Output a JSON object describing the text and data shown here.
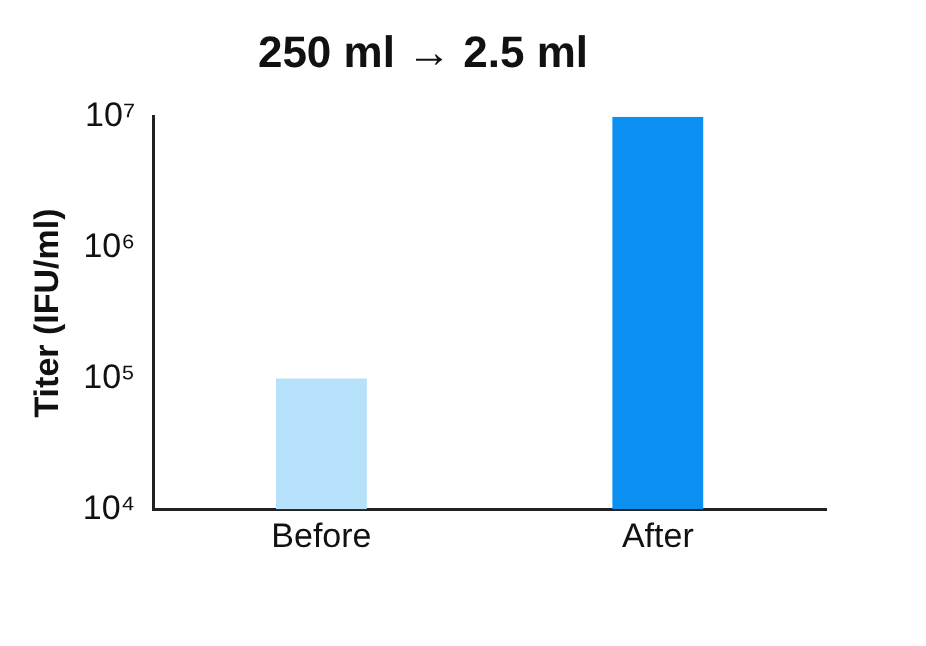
{
  "chart_data": {
    "type": "bar",
    "title": "250 ml → 2.5 ml",
    "ylabel": "Titer (IFU/ml)",
    "categories": [
      "Before",
      "After"
    ],
    "values": [
      100000,
      10000000
    ],
    "colors": [
      "#b6e1fb",
      "#0b8ff0"
    ],
    "log": true,
    "ylim": [
      10000,
      10000000
    ],
    "yticks": [
      {
        "value": 10000,
        "label": "10⁴"
      },
      {
        "value": 100000,
        "label": "10⁵"
      },
      {
        "value": 1000000,
        "label": "10⁶"
      },
      {
        "value": 10000000,
        "label": "10⁷"
      }
    ],
    "grid": false,
    "legend": false
  }
}
